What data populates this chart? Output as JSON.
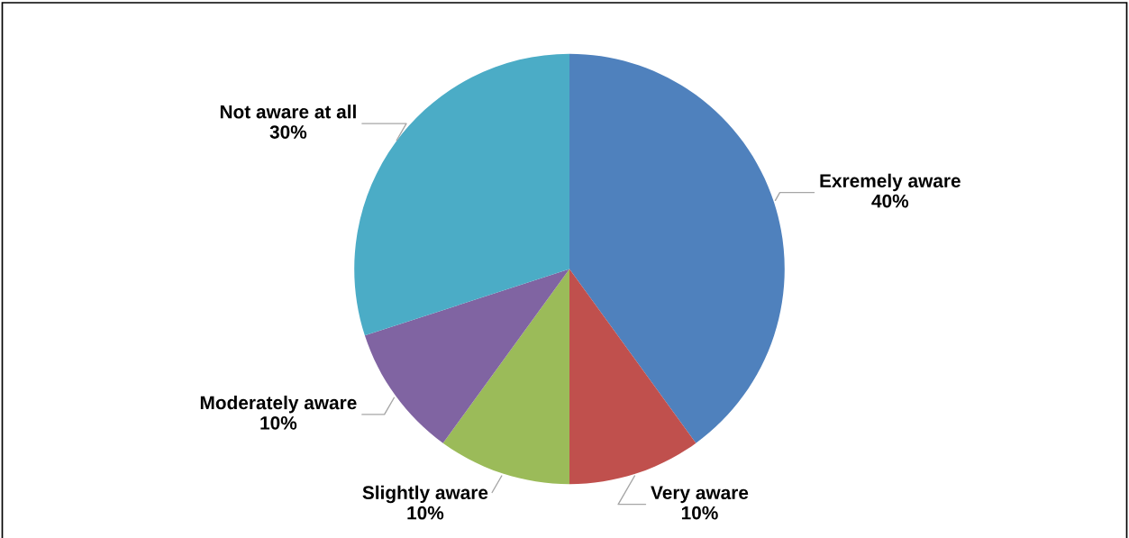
{
  "chart_data": {
    "type": "pie",
    "categories": [
      "Exremely aware",
      "Very aware",
      "Slightly aware",
      "Moderately aware",
      "Not aware at all"
    ],
    "values": [
      40,
      10,
      10,
      10,
      30
    ],
    "value_labels": [
      "40%",
      "10%",
      "10%",
      "10%",
      "30%"
    ],
    "colors": [
      "#4f81bd",
      "#c0504d",
      "#9bbb59",
      "#8064a2",
      "#4bacc6"
    ]
  }
}
